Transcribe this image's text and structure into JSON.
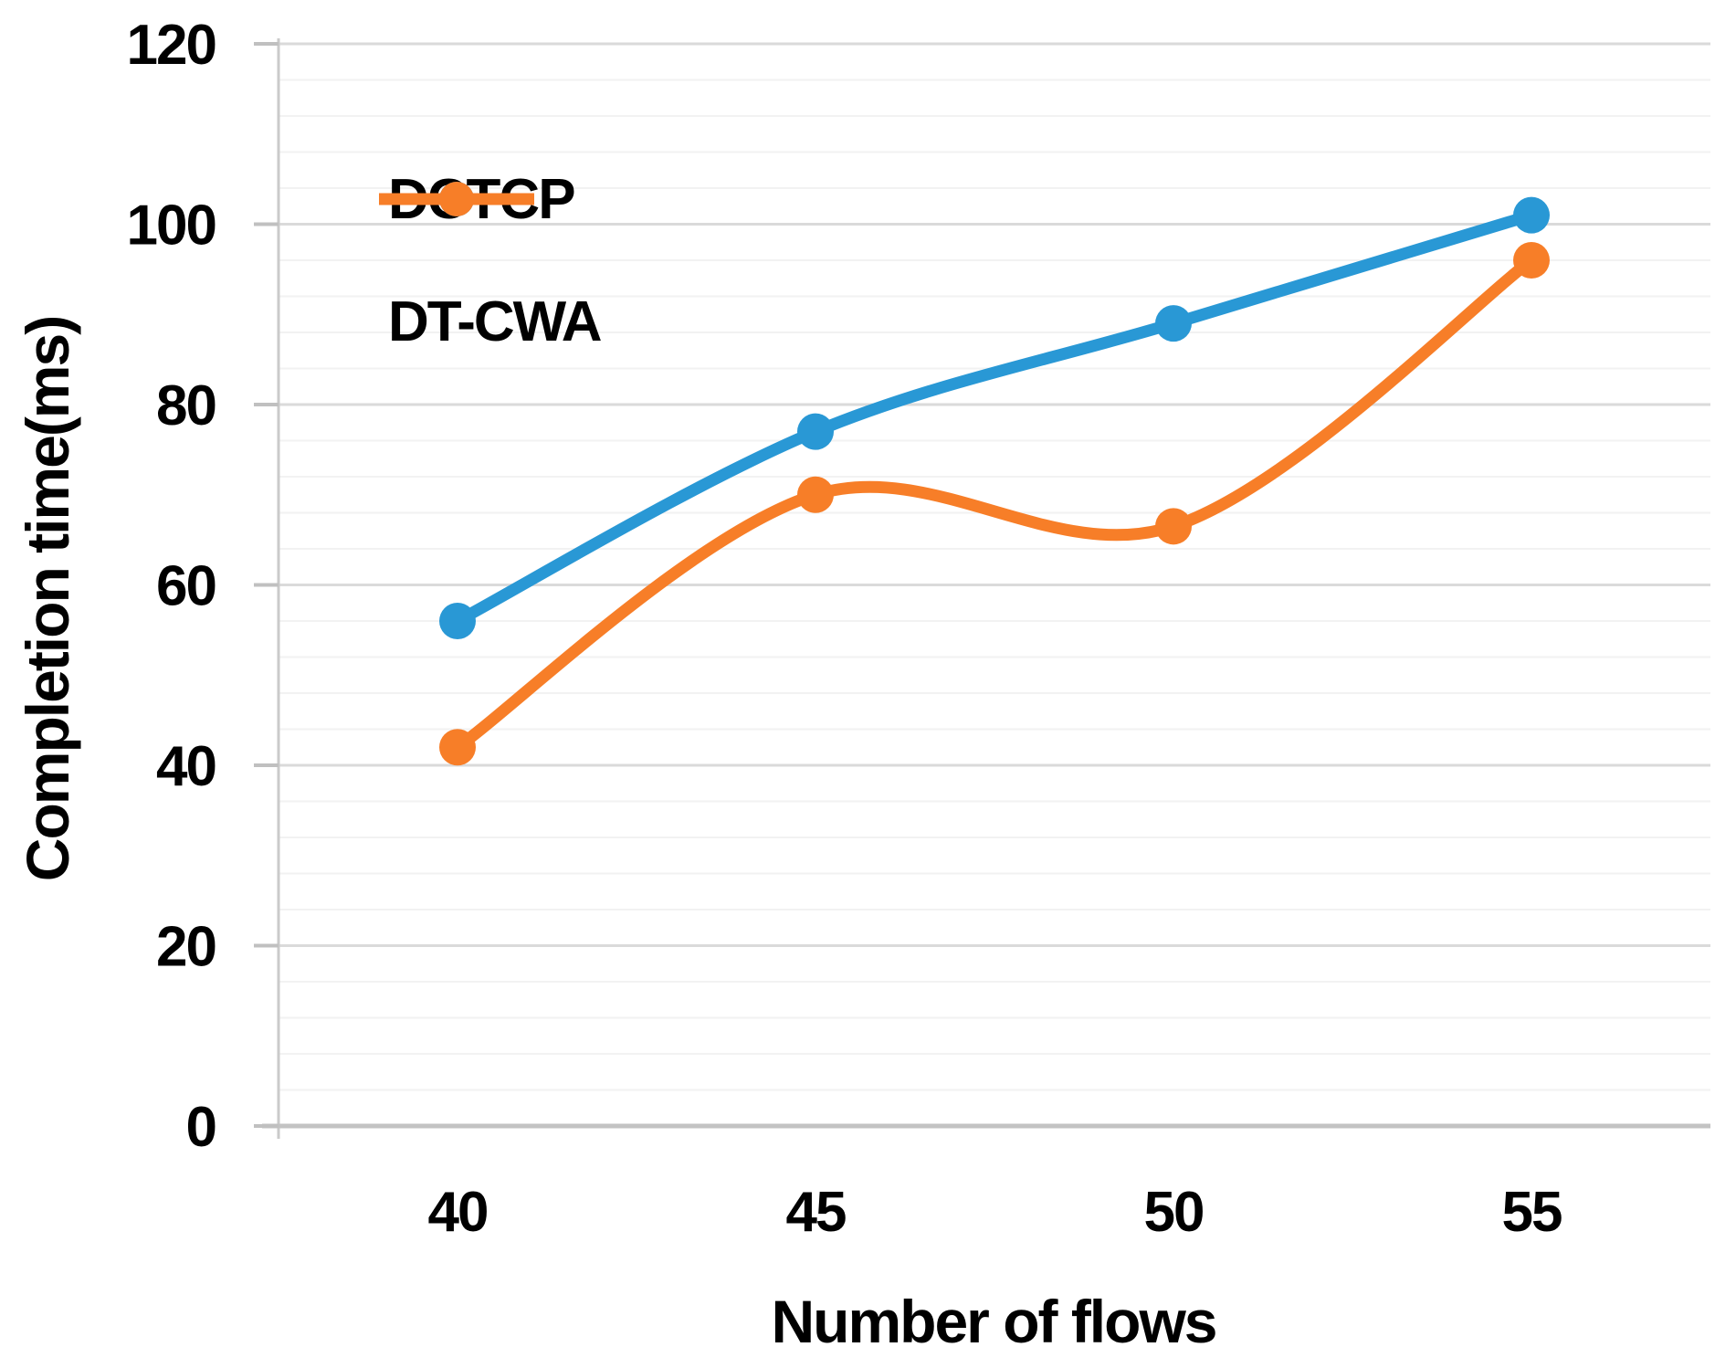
{
  "chart_data": {
    "type": "line",
    "title": "",
    "xlabel": "Number of flows",
    "ylabel": "Completion time(ms)",
    "categories": [
      "40",
      "45",
      "50",
      "55"
    ],
    "y_ticks": [
      "0",
      "20",
      "40",
      "60",
      "80",
      "100",
      "120"
    ],
    "ylim": [
      0,
      120
    ],
    "y_major_step": 20,
    "y_minor_step": 4,
    "grid": "horizontal major+minor, no vertical gridlines",
    "legend_position": "inside top-left",
    "smoothed_lines": true,
    "marker": "circle",
    "series": [
      {
        "name": "DCTCP",
        "color": "#2998D5",
        "values": [
          56,
          77,
          89,
          101
        ]
      },
      {
        "name": "DT-CWA",
        "color": "#F77E28",
        "values": [
          42,
          70,
          66.5,
          96
        ]
      }
    ]
  },
  "colors": {
    "background": "#ffffff",
    "grid_major": "#DADADA",
    "grid_minor": "#F2F2F2",
    "axis_vertical": "#CACACA",
    "axis_horizontal": "#C3C3C3",
    "tick": "#C0C0C0",
    "text": "#000000"
  }
}
